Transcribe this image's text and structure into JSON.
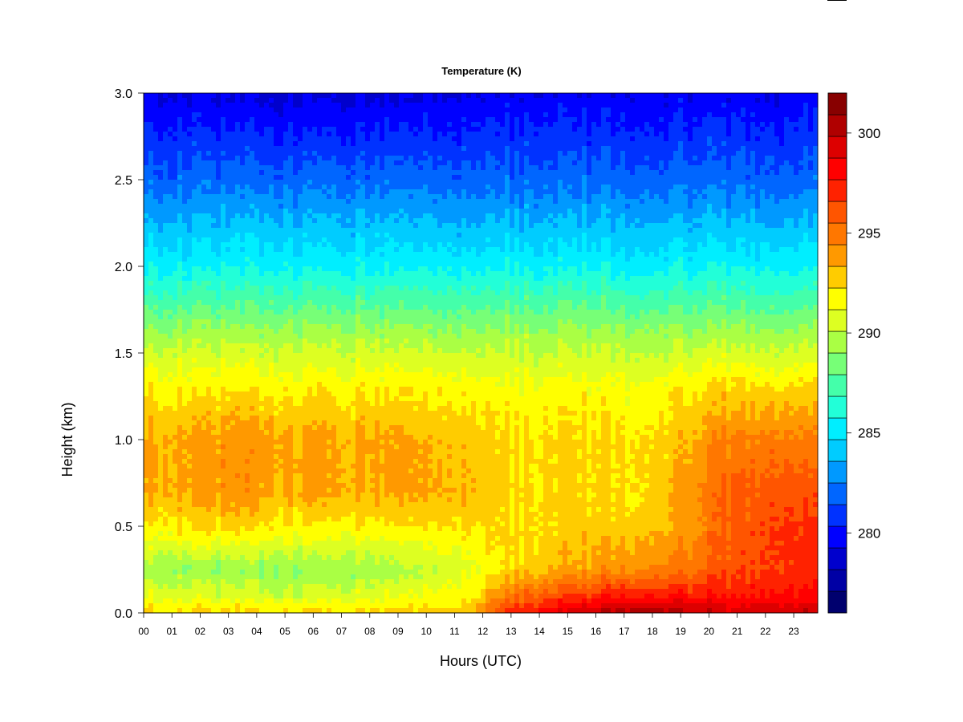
{
  "chart_data": {
    "type": "heatmap",
    "title": "Temperature (K)",
    "xlabel": "Hours (UTC)",
    "ylabel": "Height (km)",
    "x_ticks": [
      "00",
      "01",
      "02",
      "03",
      "04",
      "05",
      "06",
      "07",
      "08",
      "09",
      "10",
      "11",
      "12",
      "13",
      "14",
      "15",
      "16",
      "17",
      "18",
      "19",
      "20",
      "21",
      "22",
      "23"
    ],
    "xlim": [
      0,
      23.85
    ],
    "y_ticks": [
      "0.0",
      "0.5",
      "1.0",
      "1.5",
      "2.0",
      "2.5",
      "3.0"
    ],
    "ylim": [
      0,
      3.0
    ],
    "colorbar": {
      "ticks": [
        "280",
        "285",
        "290",
        "295",
        "300"
      ],
      "range": [
        276,
        302
      ],
      "colors": [
        "#00006e",
        "#0000a5",
        "#0000cd",
        "#0000ff",
        "#0032ff",
        "#0066ff",
        "#0099ff",
        "#00ccff",
        "#00eeff",
        "#22ffd8",
        "#44ffaa",
        "#77ff77",
        "#aaff44",
        "#ddff22",
        "#ffff00",
        "#ffcc00",
        "#ff9900",
        "#ff7700",
        "#ff5500",
        "#ff2200",
        "#ff0000",
        "#dd0000",
        "#b00000",
        "#880000"
      ]
    },
    "grid": false,
    "field": {
      "heights_km": [
        0.0,
        0.1,
        0.25,
        0.5,
        0.7,
        1.0,
        1.3,
        1.6,
        2.0,
        2.5,
        3.0
      ],
      "profiles": [
        {
          "hour": 0.0,
          "temps_K": [
            292.5,
            291.0,
            289.5,
            292.0,
            293.5,
            293.5,
            292.0,
            289.5,
            285.5,
            282.0,
            279.5
          ]
        },
        {
          "hour": 3.0,
          "temps_K": [
            292.5,
            290.5,
            289.0,
            292.5,
            294.0,
            294.0,
            292.0,
            289.5,
            285.5,
            282.0,
            279.0
          ]
        },
        {
          "hour": 6.0,
          "temps_K": [
            292.5,
            290.5,
            289.0,
            292.0,
            293.5,
            293.5,
            292.0,
            289.5,
            285.5,
            282.0,
            279.0
          ]
        },
        {
          "hour": 9.0,
          "temps_K": [
            292.5,
            291.0,
            289.5,
            292.0,
            293.5,
            293.5,
            292.0,
            289.5,
            285.5,
            282.0,
            279.0
          ]
        },
        {
          "hour": 11.5,
          "temps_K": [
            293.0,
            292.0,
            291.0,
            292.5,
            293.5,
            293.0,
            292.0,
            289.5,
            285.5,
            282.0,
            279.5
          ]
        },
        {
          "hour": 13.0,
          "temps_K": [
            297.5,
            295.0,
            292.5,
            292.5,
            292.5,
            292.5,
            291.5,
            289.5,
            285.5,
            282.0,
            279.5
          ]
        },
        {
          "hour": 15.0,
          "temps_K": [
            299.0,
            296.5,
            293.5,
            292.5,
            292.5,
            292.5,
            291.5,
            289.5,
            285.5,
            282.0,
            279.5
          ]
        },
        {
          "hour": 17.5,
          "temps_K": [
            301.0,
            298.0,
            294.5,
            293.0,
            292.5,
            292.5,
            291.5,
            289.5,
            285.5,
            282.0,
            279.5
          ]
        },
        {
          "hour": 19.0,
          "temps_K": [
            300.5,
            297.5,
            295.0,
            293.5,
            293.5,
            293.0,
            292.0,
            289.5,
            285.5,
            282.0,
            279.5
          ]
        },
        {
          "hour": 20.5,
          "temps_K": [
            299.5,
            297.5,
            296.0,
            295.5,
            295.5,
            294.5,
            292.5,
            289.5,
            285.5,
            282.0,
            279.5
          ]
        },
        {
          "hour": 22.5,
          "temps_K": [
            300.0,
            298.0,
            297.0,
            297.0,
            296.5,
            295.0,
            292.5,
            289.5,
            285.5,
            282.0,
            279.5
          ]
        },
        {
          "hour": 23.85,
          "temps_K": [
            299.5,
            298.0,
            297.0,
            296.5,
            296.0,
            294.5,
            292.5,
            289.5,
            285.5,
            282.0,
            279.5
          ]
        }
      ]
    }
  }
}
